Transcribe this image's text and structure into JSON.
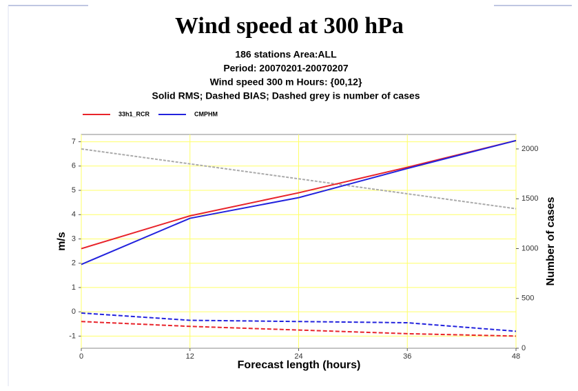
{
  "chart_data": {
    "type": "line",
    "title": "Wind speed at 300 hPa",
    "subtitle": [
      "186 stations Area:ALL",
      "Period: 20070201-20070207",
      "Wind speed 300  m   Hours: {00,12}",
      "Solid RMS; Dashed BIAS; Dashed grey is number of cases"
    ],
    "x_label": "Forecast length (hours)",
    "y_label": "m/s",
    "y2_label": "Number of cases",
    "x": [
      0,
      12,
      24,
      36,
      48
    ],
    "xlim": [
      0,
      48
    ],
    "xticks": [
      0,
      12,
      24,
      36,
      48
    ],
    "ylim": [
      -1.5,
      7.3
    ],
    "yticks": [
      -1,
      0,
      1,
      2,
      3,
      4,
      5,
      6,
      7
    ],
    "y2lim": [
      0,
      2145
    ],
    "y2ticks": [
      0,
      500,
      1000,
      1500,
      2000
    ],
    "grid": true,
    "grid_color": "#ffff66",
    "series": [
      {
        "name": "33h1_RCR",
        "color": "#e8232a",
        "values": [
          2.6,
          3.95,
          4.9,
          5.95,
          7.05
        ],
        "bias": [
          -0.4,
          -0.6,
          -0.75,
          -0.9,
          -1.0
        ]
      },
      {
        "name": "CMPHM",
        "color": "#2222dd",
        "values": [
          1.95,
          3.85,
          4.7,
          5.9,
          7.05
        ],
        "bias": [
          -0.05,
          -0.35,
          -0.4,
          -0.45,
          -0.8
        ]
      }
    ],
    "cases": {
      "color": "#aaaaaa",
      "axis": "y2",
      "values": [
        2000,
        1850,
        1700,
        1550,
        1400
      ]
    }
  }
}
